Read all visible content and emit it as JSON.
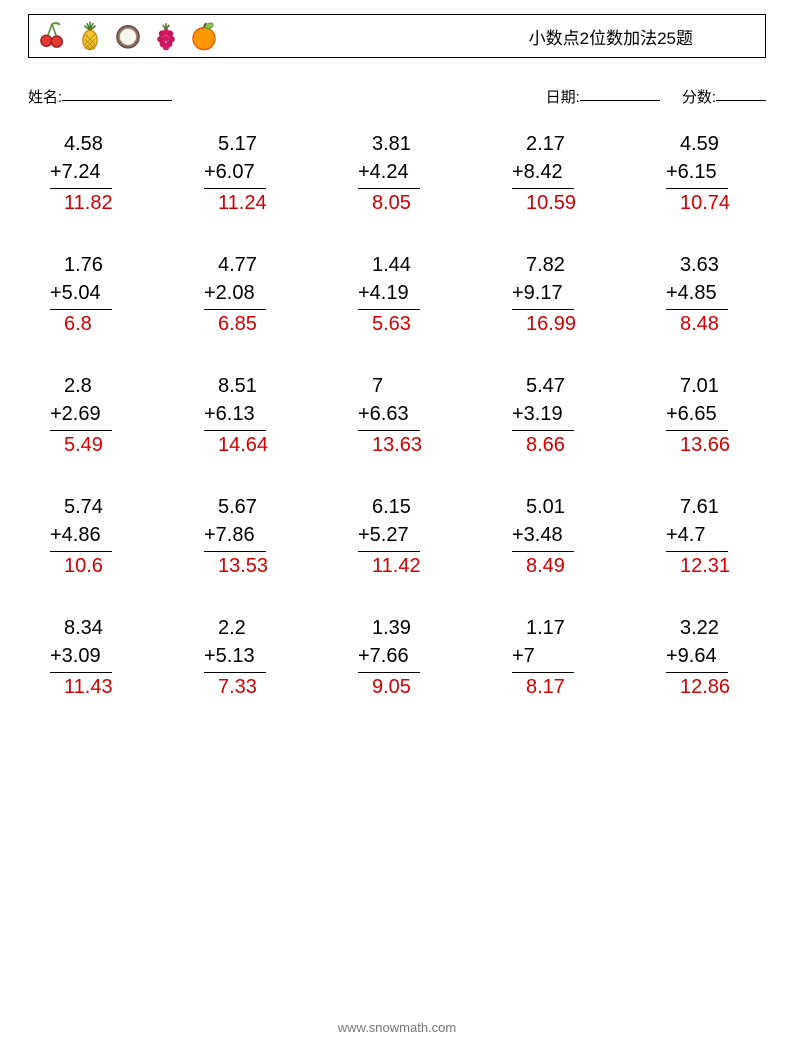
{
  "header": {
    "title": "小数点2位数加法25题",
    "fruits": [
      "cherry",
      "pineapple",
      "coconut",
      "raspberry",
      "orange"
    ]
  },
  "info": {
    "name_label": "姓名:",
    "date_label": "日期:",
    "score_label": "分数:"
  },
  "colors": {
    "answer": "#d00000",
    "text": "#000000",
    "footer": "#777777"
  },
  "problems": [
    {
      "a": "4.58",
      "b": "7.24",
      "ans": "11.82"
    },
    {
      "a": "5.17",
      "b": "6.07",
      "ans": "11.24"
    },
    {
      "a": "3.81",
      "b": "4.24",
      "ans": "8.05"
    },
    {
      "a": "2.17",
      "b": "8.42",
      "ans": "10.59"
    },
    {
      "a": "4.59",
      "b": "6.15",
      "ans": "10.74"
    },
    {
      "a": "1.76",
      "b": "5.04",
      "ans": "6.8"
    },
    {
      "a": "4.77",
      "b": "2.08",
      "ans": "6.85"
    },
    {
      "a": "1.44",
      "b": "4.19",
      "ans": "5.63"
    },
    {
      "a": "7.82",
      "b": "9.17",
      "ans": "16.99"
    },
    {
      "a": "3.63",
      "b": "4.85",
      "ans": "8.48"
    },
    {
      "a": "2.8",
      "b": "2.69",
      "ans": "5.49"
    },
    {
      "a": "8.51",
      "b": "6.13",
      "ans": "14.64"
    },
    {
      "a": "7",
      "b": "6.63",
      "ans": "13.63"
    },
    {
      "a": "5.47",
      "b": "3.19",
      "ans": "8.66"
    },
    {
      "a": "7.01",
      "b": "6.65",
      "ans": "13.66"
    },
    {
      "a": "5.74",
      "b": "4.86",
      "ans": "10.6"
    },
    {
      "a": "5.67",
      "b": "7.86",
      "ans": "13.53"
    },
    {
      "a": "6.15",
      "b": "5.27",
      "ans": "11.42"
    },
    {
      "a": "5.01",
      "b": "3.48",
      "ans": "8.49"
    },
    {
      "a": "7.61",
      "b": "4.7",
      "ans": "12.31"
    },
    {
      "a": "8.34",
      "b": "3.09",
      "ans": "11.43"
    },
    {
      "a": "2.2",
      "b": "5.13",
      "ans": "7.33"
    },
    {
      "a": "1.39",
      "b": "7.66",
      "ans": "9.05"
    },
    {
      "a": "1.17",
      "b": "7",
      "ans": "8.17"
    },
    {
      "a": "3.22",
      "b": "9.64",
      "ans": "12.86"
    }
  ],
  "footer": {
    "url": "www.snowmath.com"
  }
}
